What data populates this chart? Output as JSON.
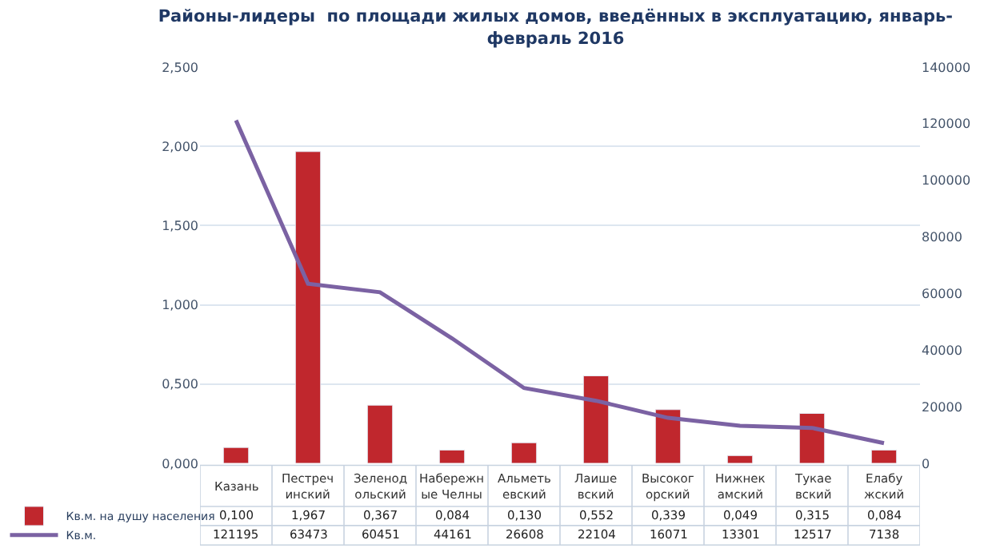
{
  "chart_data": {
    "type": "bar",
    "title": "Районы-лидеры  по площади жилых домов, введённых в эксплуатацию, январь-\nфевраль 2016",
    "categories": [
      "Казань",
      "Пестречинский",
      "Зеленодольский",
      "Набережные Челны",
      "Альметьевский",
      "Лаишевский",
      "Высокогорский",
      "Нижнекамский",
      "Тукаевский",
      "Елабужский"
    ],
    "series": [
      {
        "name": "Кв.м. на душу населения",
        "type": "bar",
        "color": "#c0272d",
        "values": [
          0.1,
          1.967,
          0.367,
          0.084,
          0.13,
          0.552,
          0.339,
          0.049,
          0.315,
          0.084
        ],
        "value_labels": [
          "0,100",
          "1,967",
          "0,367",
          "0,084",
          "0,130",
          "0,552",
          "0,339",
          "0,049",
          "0,315",
          "0,084"
        ]
      },
      {
        "name": "Кв.м.",
        "type": "line",
        "axis": "y2",
        "color": "#7b62a3",
        "values": [
          121195,
          63473,
          60451,
          44161,
          26608,
          22104,
          16071,
          13301,
          12517,
          7138
        ],
        "value_labels": [
          "121195",
          "63473",
          "60451",
          "44161",
          "26608",
          "22104",
          "16071",
          "13301",
          "12517",
          "7138"
        ]
      }
    ],
    "ylim": [
      0,
      2.5
    ],
    "yticks": [
      {
        "value": 0,
        "label": "0,000"
      },
      {
        "value": 0.5,
        "label": "0,500"
      },
      {
        "value": 1,
        "label": "1,000"
      },
      {
        "value": 1.5,
        "label": "1,500"
      },
      {
        "value": 2,
        "label": "2,000"
      },
      {
        "value": 2.5,
        "label": "2,500"
      }
    ],
    "y2lim": [
      0,
      140000
    ],
    "y2ticks": [
      0,
      20000,
      40000,
      60000,
      80000,
      100000,
      120000,
      140000
    ],
    "grid": "y",
    "legend": "bottom left",
    "marker": "none",
    "line_style": "solid"
  }
}
